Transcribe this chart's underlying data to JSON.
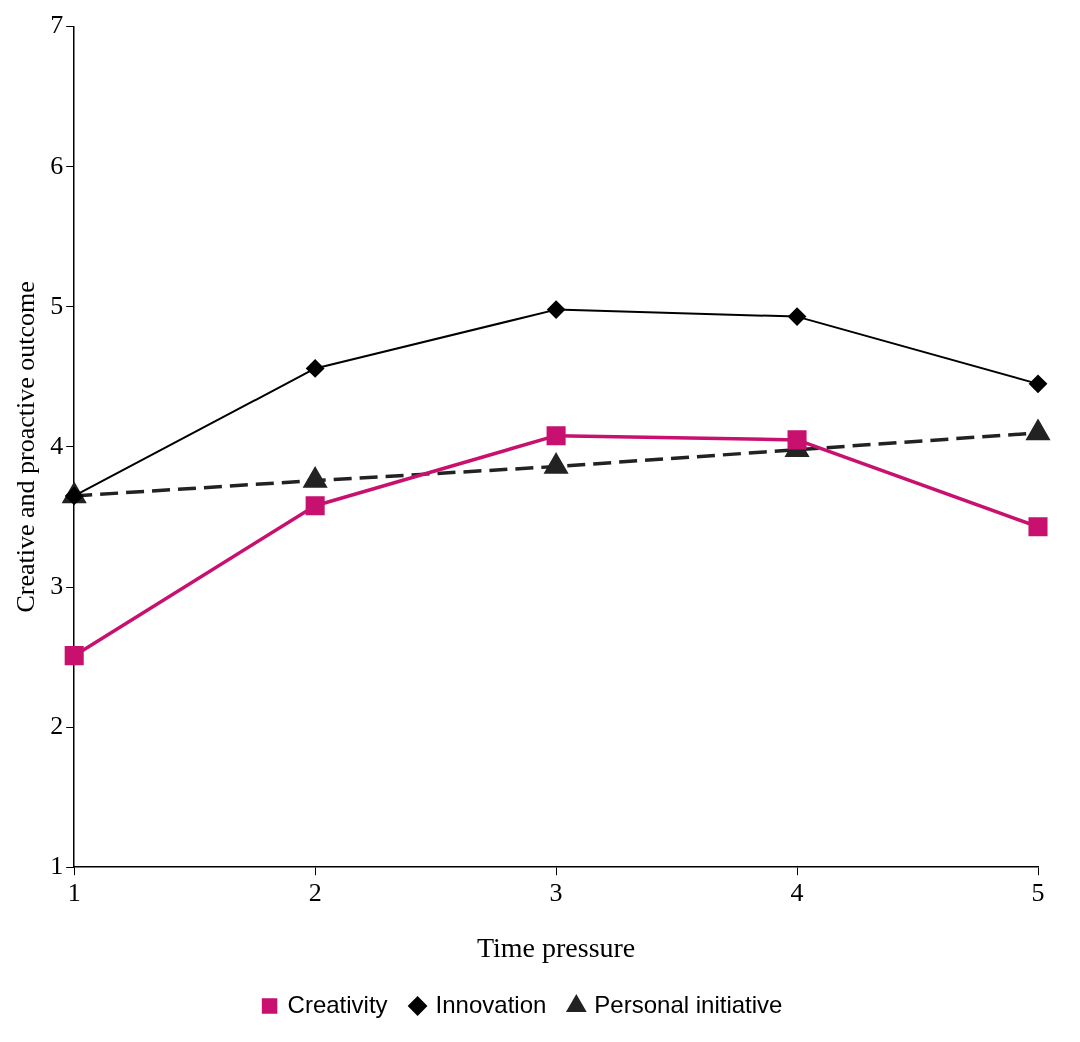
{
  "chart_data": {
    "type": "line",
    "xlabel": "Time pressure",
    "ylabel": "Creative and proactive outcome",
    "x": [
      1,
      2,
      3,
      4,
      5
    ],
    "xlim": [
      1,
      5
    ],
    "xticks": [
      1,
      2,
      3,
      4,
      5
    ],
    "ylim": [
      1,
      7
    ],
    "yticks": [
      1,
      2,
      3,
      4,
      5,
      6,
      7
    ],
    "grid": false,
    "legend": "bottom",
    "series": [
      {
        "name": "Creativity",
        "color": "#c8106e",
        "marker": "square",
        "line_style": "solid",
        "values": [
          2.51,
          3.58,
          4.08,
          4.05,
          3.43
        ]
      },
      {
        "name": "Innovation",
        "color": "#000000",
        "marker": "diamond",
        "line_style": "solid",
        "values": [
          3.65,
          4.56,
          4.98,
          4.93,
          4.45
        ]
      },
      {
        "name": "Personal initiative",
        "color": "#222222",
        "marker": "triangle",
        "line_style": "dashed",
        "values": [
          3.65,
          3.76,
          3.86,
          3.98,
          4.1
        ]
      }
    ]
  }
}
